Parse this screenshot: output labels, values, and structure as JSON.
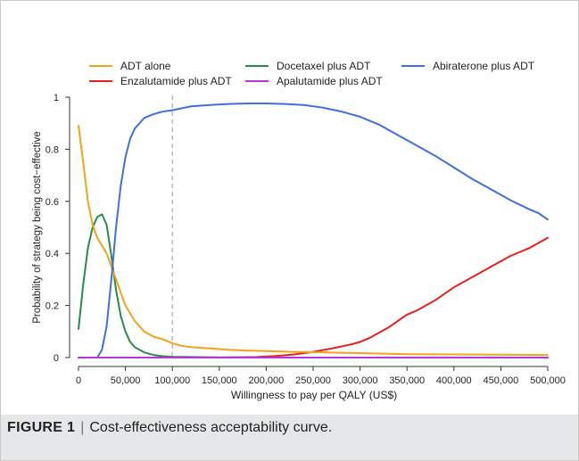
{
  "figure": {
    "label": "FIGURE 1",
    "separator": "|",
    "caption": "Cost-effectiveness acceptability curve."
  },
  "chart_data": {
    "type": "line",
    "title": "",
    "xlabel": "Willingness to pay per QALY (US$)",
    "ylabel": "Probability of strategy being cost−effective",
    "xlim": [
      0,
      500000
    ],
    "ylim": [
      0,
      1
    ],
    "x_ticks": [
      0,
      50000,
      100000,
      150000,
      200000,
      250000,
      300000,
      350000,
      400000,
      450000,
      500000
    ],
    "x_tick_labels": [
      "0",
      "50,000",
      "100,000",
      "150,000",
      "200,000",
      "250,000",
      "300,000",
      "350,000",
      "400,000",
      "450,000",
      "500,000"
    ],
    "y_ticks": [
      0,
      0.2,
      0.4,
      0.6,
      0.8,
      1
    ],
    "y_tick_labels": [
      "0",
      "0.2",
      "0.4",
      "0.6",
      "0.8",
      "1"
    ],
    "grid": false,
    "legend_position": "top",
    "reference_line": {
      "x": 100000,
      "style": "dashed",
      "color": "#aaaaaa"
    },
    "series": [
      {
        "name": "ADT alone",
        "color": "#f2a31a",
        "points": [
          [
            0,
            0.89
          ],
          [
            5000,
            0.75
          ],
          [
            10000,
            0.6
          ],
          [
            15000,
            0.51
          ],
          [
            20000,
            0.46
          ],
          [
            25000,
            0.43
          ],
          [
            30000,
            0.4
          ],
          [
            35000,
            0.35
          ],
          [
            40000,
            0.3
          ],
          [
            45000,
            0.25
          ],
          [
            50000,
            0.2
          ],
          [
            60000,
            0.14
          ],
          [
            70000,
            0.1
          ],
          [
            80000,
            0.08
          ],
          [
            90000,
            0.07
          ],
          [
            100000,
            0.055
          ],
          [
            110000,
            0.045
          ],
          [
            120000,
            0.04
          ],
          [
            140000,
            0.035
          ],
          [
            160000,
            0.03
          ],
          [
            180000,
            0.027
          ],
          [
            200000,
            0.025
          ],
          [
            230000,
            0.022
          ],
          [
            260000,
            0.02
          ],
          [
            300000,
            0.017
          ],
          [
            350000,
            0.013
          ],
          [
            400000,
            0.012
          ],
          [
            450000,
            0.011
          ],
          [
            500000,
            0.01
          ]
        ]
      },
      {
        "name": "Enzalutamide plus ADT",
        "color": "#e3231b",
        "points": [
          [
            0,
            0.0
          ],
          [
            150000,
            0.0
          ],
          [
            190000,
            0.002
          ],
          [
            210000,
            0.006
          ],
          [
            230000,
            0.012
          ],
          [
            250000,
            0.022
          ],
          [
            270000,
            0.035
          ],
          [
            290000,
            0.05
          ],
          [
            300000,
            0.06
          ],
          [
            310000,
            0.075
          ],
          [
            320000,
            0.095
          ],
          [
            330000,
            0.115
          ],
          [
            340000,
            0.14
          ],
          [
            350000,
            0.165
          ],
          [
            360000,
            0.18
          ],
          [
            370000,
            0.2
          ],
          [
            380000,
            0.22
          ],
          [
            390000,
            0.245
          ],
          [
            400000,
            0.27
          ],
          [
            410000,
            0.29
          ],
          [
            420000,
            0.31
          ],
          [
            430000,
            0.33
          ],
          [
            440000,
            0.35
          ],
          [
            450000,
            0.37
          ],
          [
            460000,
            0.39
          ],
          [
            470000,
            0.405
          ],
          [
            480000,
            0.42
          ],
          [
            490000,
            0.44
          ],
          [
            500000,
            0.46
          ]
        ]
      },
      {
        "name": "Docetaxel plus ADT",
        "color": "#2a8a4a",
        "points": [
          [
            0,
            0.11
          ],
          [
            5000,
            0.28
          ],
          [
            10000,
            0.42
          ],
          [
            15000,
            0.5
          ],
          [
            20000,
            0.54
          ],
          [
            25000,
            0.55
          ],
          [
            30000,
            0.51
          ],
          [
            35000,
            0.39
          ],
          [
            40000,
            0.26
          ],
          [
            45000,
            0.16
          ],
          [
            50000,
            0.1
          ],
          [
            55000,
            0.06
          ],
          [
            60000,
            0.04
          ],
          [
            70000,
            0.02
          ],
          [
            80000,
            0.01
          ],
          [
            90000,
            0.005
          ],
          [
            100000,
            0.003
          ],
          [
            120000,
            0.002
          ],
          [
            150000,
            0.001
          ],
          [
            200000,
            0.0
          ],
          [
            500000,
            0.0
          ]
        ]
      },
      {
        "name": "Apalutamide plus ADT",
        "color": "#b536d6",
        "points": [
          [
            0,
            0.0
          ],
          [
            500000,
            0.0
          ]
        ]
      },
      {
        "name": "Abiraterone plus ADT",
        "color": "#3f6fdc",
        "points": [
          [
            0,
            0.0
          ],
          [
            20000,
            0.0
          ],
          [
            25000,
            0.03
          ],
          [
            30000,
            0.12
          ],
          [
            35000,
            0.3
          ],
          [
            40000,
            0.5
          ],
          [
            45000,
            0.66
          ],
          [
            50000,
            0.77
          ],
          [
            55000,
            0.84
          ],
          [
            60000,
            0.88
          ],
          [
            70000,
            0.92
          ],
          [
            80000,
            0.935
          ],
          [
            90000,
            0.945
          ],
          [
            100000,
            0.95
          ],
          [
            120000,
            0.965
          ],
          [
            140000,
            0.97
          ],
          [
            160000,
            0.974
          ],
          [
            180000,
            0.976
          ],
          [
            200000,
            0.976
          ],
          [
            220000,
            0.974
          ],
          [
            240000,
            0.97
          ],
          [
            260000,
            0.96
          ],
          [
            280000,
            0.945
          ],
          [
            300000,
            0.925
          ],
          [
            320000,
            0.895
          ],
          [
            340000,
            0.855
          ],
          [
            360000,
            0.815
          ],
          [
            380000,
            0.775
          ],
          [
            400000,
            0.73
          ],
          [
            420000,
            0.685
          ],
          [
            440000,
            0.645
          ],
          [
            460000,
            0.605
          ],
          [
            480000,
            0.57
          ],
          [
            490000,
            0.555
          ],
          [
            500000,
            0.53
          ]
        ]
      }
    ]
  }
}
